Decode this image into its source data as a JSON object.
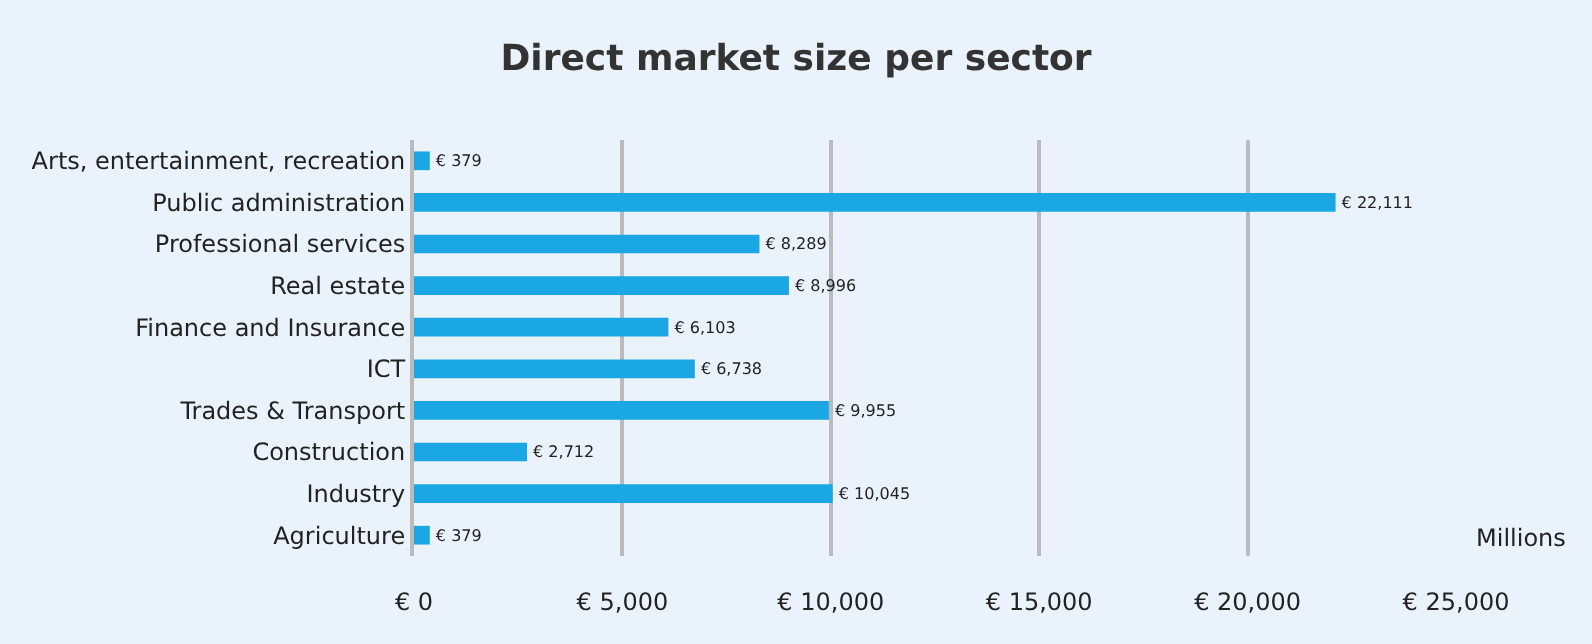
{
  "chart_data": {
    "type": "bar",
    "orientation": "horizontal",
    "title": "Direct market size per sector",
    "xlabel": "Millions",
    "categories": [
      "Arts, entertainment, recreation",
      "Public administration",
      "Professional services",
      "Real estate",
      "Finance and Insurance",
      "ICT",
      "Trades & Transport",
      "Construction",
      "Industry",
      "Agriculture"
    ],
    "values": [
      379,
      22111,
      8289,
      8996,
      6103,
      6738,
      9955,
      2712,
      10045,
      379
    ],
    "value_labels": [
      "€ 379",
      "€ 22,111",
      "€ 8,289",
      "€ 8,996",
      "€ 6,103",
      "€ 6,738",
      "€ 9,955",
      "€ 2,712",
      "€ 10,045",
      "€ 379"
    ],
    "color": "#1aa7e3",
    "xlim": [
      0,
      25000
    ],
    "xticks": [
      {
        "value": 0,
        "label": "€ 0"
      },
      {
        "value": 5000,
        "label": "€ 5,000"
      },
      {
        "value": 10000,
        "label": "€ 10,000"
      },
      {
        "value": 15000,
        "label": "€ 15,000"
      },
      {
        "value": 20000,
        "label": "€ 20,000"
      },
      {
        "value": 25000,
        "label": "€ 25,000"
      }
    ],
    "grid": "x"
  }
}
